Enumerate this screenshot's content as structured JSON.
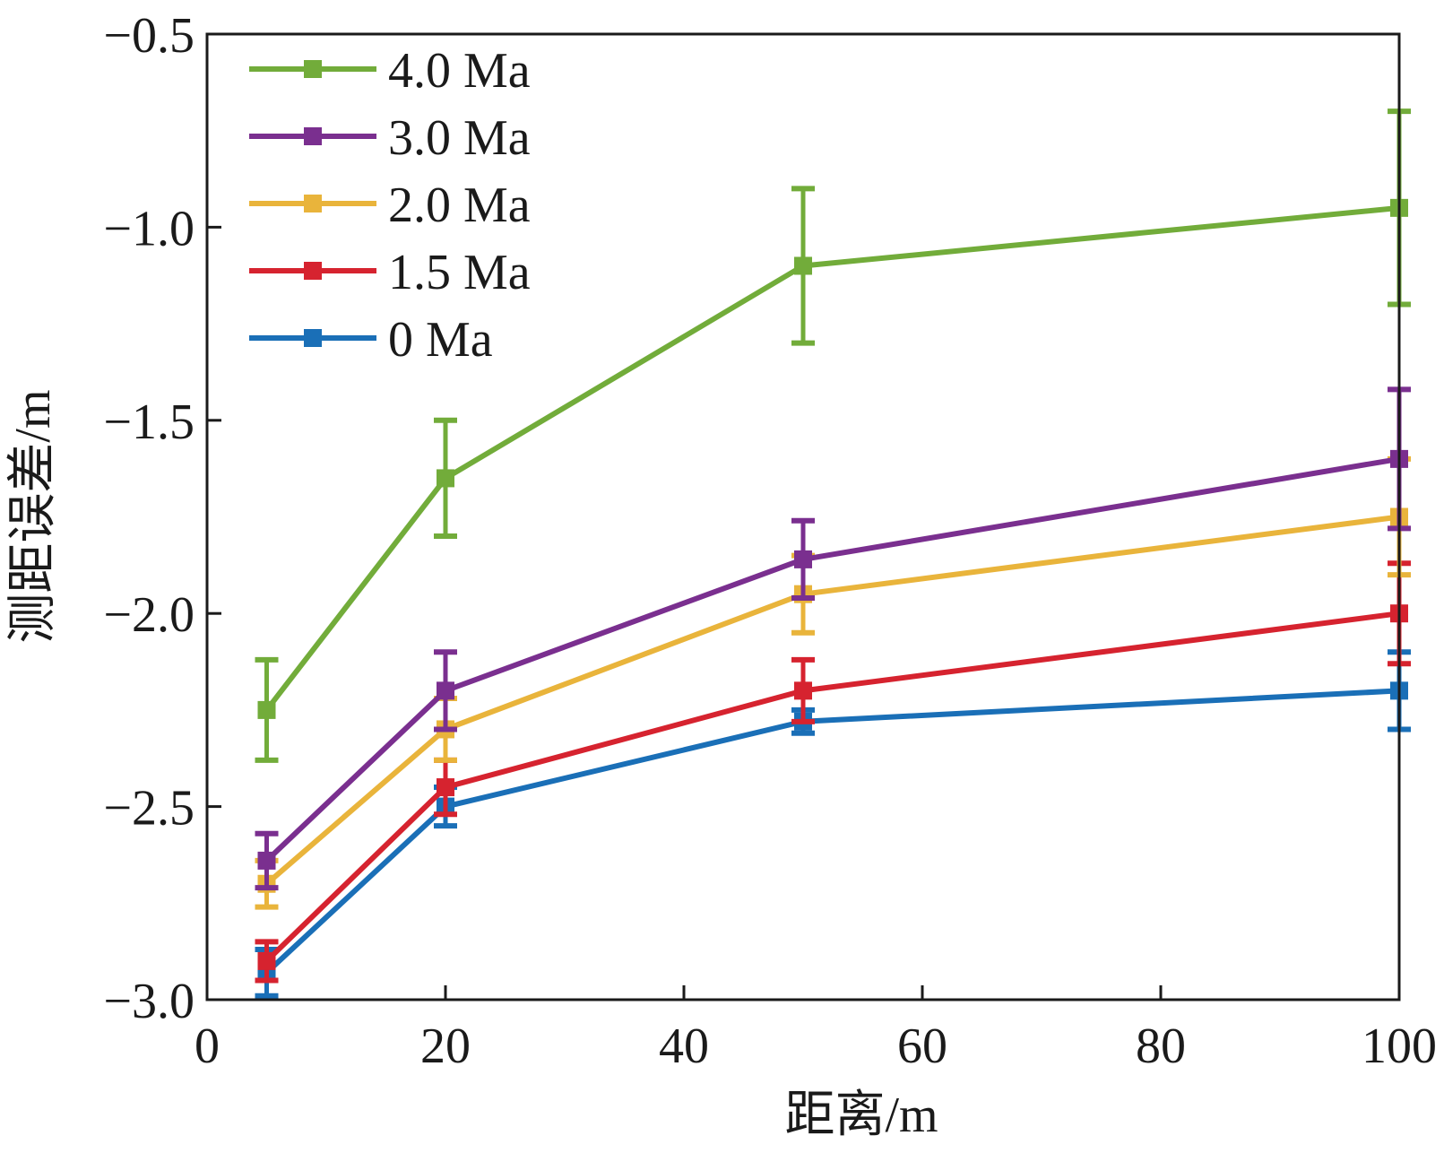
{
  "chart_data": {
    "type": "line",
    "title": "",
    "xlabel": "距离/m",
    "ylabel": "测距误差/m",
    "xlim": [
      0,
      100
    ],
    "ylim": [
      -3.0,
      -0.5
    ],
    "xticks": [
      0,
      20,
      40,
      60,
      80,
      100
    ],
    "yticks": [
      -3.0,
      -2.5,
      -2.0,
      -1.5,
      -1.0,
      -0.5
    ],
    "xtick_labels": [
      "0",
      "20",
      "40",
      "60",
      "80",
      "100"
    ],
    "ytick_labels": [
      "−3.0",
      "−2.5",
      "−2.0",
      "−1.5",
      "−1.0",
      "−0.5"
    ],
    "grid": false,
    "legend_position": "top-left",
    "x": [
      5,
      20,
      50,
      100
    ],
    "series": [
      {
        "name": "4.0 Ma",
        "color": "#72ac3a",
        "values": [
          -2.25,
          -1.65,
          -1.1,
          -0.95
        ],
        "err": [
          0.13,
          0.15,
          0.2,
          0.25
        ]
      },
      {
        "name": "3.0 Ma",
        "color": "#7a2f8f",
        "values": [
          -2.64,
          -2.2,
          -1.86,
          -1.6
        ],
        "err": [
          0.07,
          0.1,
          0.1,
          0.18
        ]
      },
      {
        "name": "2.0 Ma",
        "color": "#e9b43b",
        "values": [
          -2.7,
          -2.3,
          -1.95,
          -1.75
        ],
        "err": [
          0.06,
          0.08,
          0.1,
          0.15
        ]
      },
      {
        "name": "1.5 Ma",
        "color": "#d6232f",
        "values": [
          -2.9,
          -2.45,
          -2.2,
          -2.0
        ],
        "err": [
          0.05,
          0.07,
          0.08,
          0.13
        ]
      },
      {
        "name": "0 Ma",
        "color": "#1a6fb7",
        "values": [
          -2.93,
          -2.5,
          -2.28,
          -2.2
        ],
        "err": [
          0.06,
          0.05,
          0.03,
          0.1
        ]
      }
    ]
  }
}
